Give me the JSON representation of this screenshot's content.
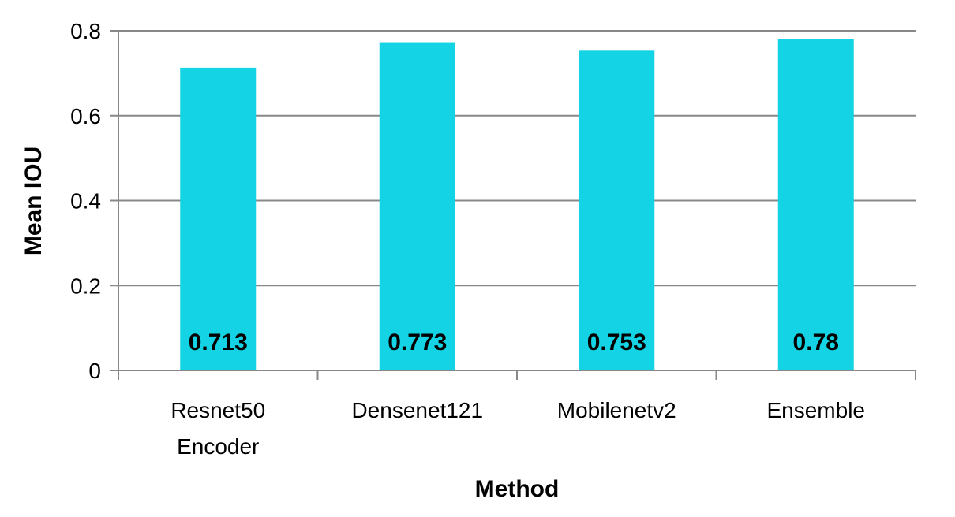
{
  "chart_data": {
    "type": "bar",
    "title": "",
    "xlabel": "Method",
    "ylabel": "Mean IOU",
    "categories": [
      [
        "Resnet50",
        "Encoder"
      ],
      [
        "Densenet121"
      ],
      [
        "Mobilenetv2"
      ],
      [
        "Ensemble"
      ]
    ],
    "values": [
      0.713,
      0.773,
      0.753,
      0.78
    ],
    "data_labels": [
      "0.713",
      "0.773",
      "0.753",
      "0.78"
    ],
    "ylim": [
      0,
      0.8
    ],
    "yticks": [
      0,
      0.2,
      0.4,
      0.6,
      0.8
    ],
    "ytick_labels": [
      "0",
      "0.2",
      "0.4",
      "0.6",
      "0.8"
    ],
    "grid": true,
    "legend": "none",
    "bar_color": "#13D3E4"
  }
}
